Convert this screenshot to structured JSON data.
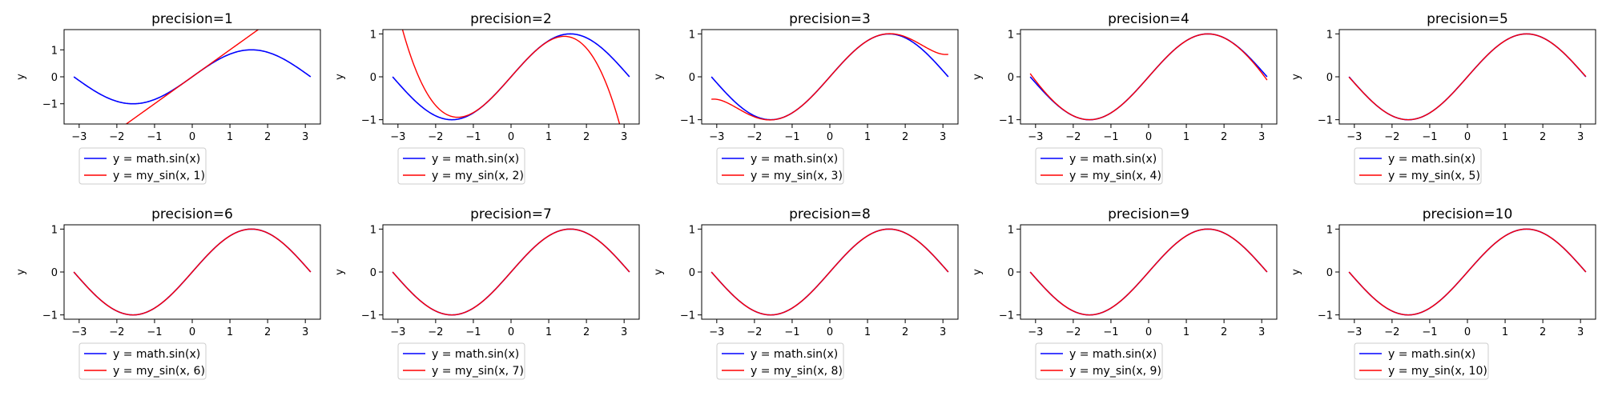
{
  "chart_data": [
    {
      "type": "line",
      "title": "precision=1",
      "ylabel": "y",
      "xlim": [
        -3.4,
        3.4
      ],
      "ylim": [
        -1.75,
        1.75
      ],
      "xticks": [
        -3,
        -2,
        -1,
        0,
        1,
        2,
        3
      ],
      "yticks": [
        -1,
        0,
        1
      ],
      "legend": "below",
      "precision": 1,
      "series": [
        {
          "name": "y = math.sin(x)",
          "color": "#0000ff"
        },
        {
          "name": "y = my_sin(x, 1)",
          "color": "#ff0000"
        }
      ]
    },
    {
      "type": "line",
      "title": "precision=2",
      "ylabel": "y",
      "xlim": [
        -3.4,
        3.4
      ],
      "ylim": [
        -1.1,
        1.1
      ],
      "xticks": [
        -3,
        -2,
        -1,
        0,
        1,
        2,
        3
      ],
      "yticks": [
        -1,
        0,
        1
      ],
      "legend": "below",
      "precision": 2,
      "series": [
        {
          "name": "y = math.sin(x)",
          "color": "#0000ff"
        },
        {
          "name": "y = my_sin(x, 2)",
          "color": "#ff0000"
        }
      ]
    },
    {
      "type": "line",
      "title": "precision=3",
      "ylabel": "y",
      "xlim": [
        -3.4,
        3.4
      ],
      "ylim": [
        -1.1,
        1.1
      ],
      "xticks": [
        -3,
        -2,
        -1,
        0,
        1,
        2,
        3
      ],
      "yticks": [
        -1,
        0,
        1
      ],
      "legend": "below",
      "precision": 3,
      "series": [
        {
          "name": "y = math.sin(x)",
          "color": "#0000ff"
        },
        {
          "name": "y = my_sin(x, 3)",
          "color": "#ff0000"
        }
      ]
    },
    {
      "type": "line",
      "title": "precision=4",
      "ylabel": "y",
      "xlim": [
        -3.4,
        3.4
      ],
      "ylim": [
        -1.1,
        1.1
      ],
      "xticks": [
        -3,
        -2,
        -1,
        0,
        1,
        2,
        3
      ],
      "yticks": [
        -1,
        0,
        1
      ],
      "legend": "below",
      "precision": 4,
      "series": [
        {
          "name": "y = math.sin(x)",
          "color": "#0000ff"
        },
        {
          "name": "y = my_sin(x, 4)",
          "color": "#ff0000"
        }
      ]
    },
    {
      "type": "line",
      "title": "precision=5",
      "ylabel": "y",
      "xlim": [
        -3.4,
        3.4
      ],
      "ylim": [
        -1.1,
        1.1
      ],
      "xticks": [
        -3,
        -2,
        -1,
        0,
        1,
        2,
        3
      ],
      "yticks": [
        -1,
        0,
        1
      ],
      "legend": "below",
      "precision": 5,
      "series": [
        {
          "name": "y = math.sin(x)",
          "color": "#0000ff"
        },
        {
          "name": "y = my_sin(x, 5)",
          "color": "#ff0000"
        }
      ]
    },
    {
      "type": "line",
      "title": "precision=6",
      "ylabel": "y",
      "xlim": [
        -3.4,
        3.4
      ],
      "ylim": [
        -1.1,
        1.1
      ],
      "xticks": [
        -3,
        -2,
        -1,
        0,
        1,
        2,
        3
      ],
      "yticks": [
        -1,
        0,
        1
      ],
      "legend": "below",
      "precision": 6,
      "series": [
        {
          "name": "y = math.sin(x)",
          "color": "#0000ff"
        },
        {
          "name": "y = my_sin(x, 6)",
          "color": "#ff0000"
        }
      ]
    },
    {
      "type": "line",
      "title": "precision=7",
      "ylabel": "y",
      "xlim": [
        -3.4,
        3.4
      ],
      "ylim": [
        -1.1,
        1.1
      ],
      "xticks": [
        -3,
        -2,
        -1,
        0,
        1,
        2,
        3
      ],
      "yticks": [
        -1,
        0,
        1
      ],
      "legend": "below",
      "precision": 7,
      "series": [
        {
          "name": "y = math.sin(x)",
          "color": "#0000ff"
        },
        {
          "name": "y = my_sin(x, 7)",
          "color": "#ff0000"
        }
      ]
    },
    {
      "type": "line",
      "title": "precision=8",
      "ylabel": "y",
      "xlim": [
        -3.4,
        3.4
      ],
      "ylim": [
        -1.1,
        1.1
      ],
      "xticks": [
        -3,
        -2,
        -1,
        0,
        1,
        2,
        3
      ],
      "yticks": [
        -1,
        0,
        1
      ],
      "legend": "below",
      "precision": 8,
      "series": [
        {
          "name": "y = math.sin(x)",
          "color": "#0000ff"
        },
        {
          "name": "y = my_sin(x, 8)",
          "color": "#ff0000"
        }
      ]
    },
    {
      "type": "line",
      "title": "precision=9",
      "ylabel": "y",
      "xlim": [
        -3.4,
        3.4
      ],
      "ylim": [
        -1.1,
        1.1
      ],
      "xticks": [
        -3,
        -2,
        -1,
        0,
        1,
        2,
        3
      ],
      "yticks": [
        -1,
        0,
        1
      ],
      "legend": "below",
      "precision": 9,
      "series": [
        {
          "name": "y = math.sin(x)",
          "color": "#0000ff"
        },
        {
          "name": "y = my_sin(x, 9)",
          "color": "#ff0000"
        }
      ]
    },
    {
      "type": "line",
      "title": "precision=10",
      "ylabel": "y",
      "xlim": [
        -3.4,
        3.4
      ],
      "ylim": [
        -1.1,
        1.1
      ],
      "xticks": [
        -3,
        -2,
        -1,
        0,
        1,
        2,
        3
      ],
      "yticks": [
        -1,
        0,
        1
      ],
      "legend": "below",
      "precision": 10,
      "series": [
        {
          "name": "y = math.sin(x)",
          "color": "#0000ff"
        },
        {
          "name": "y = my_sin(x, 10)",
          "color": "#ff0000"
        }
      ]
    }
  ]
}
